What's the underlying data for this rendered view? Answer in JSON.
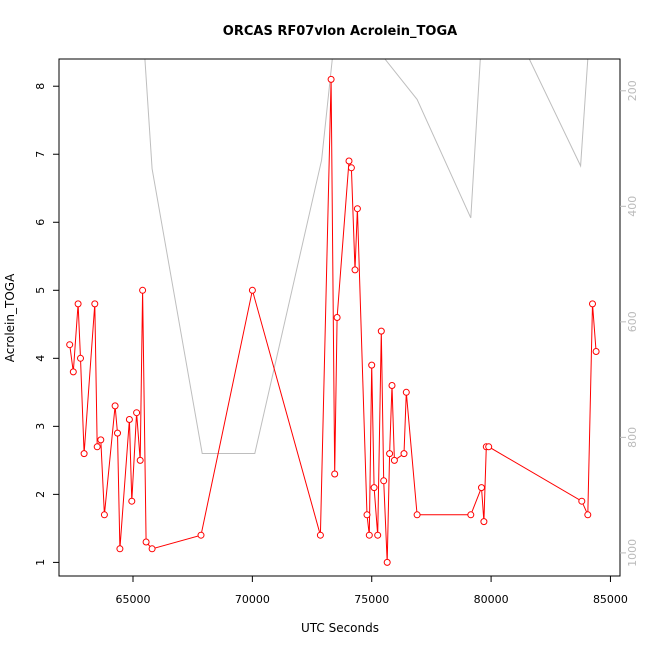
{
  "chart_data": {
    "type": "line",
    "title": "ORCAS RF07vlon Acrolein_TOGA",
    "xlabel": "UTC Seconds",
    "ylabel": "Acrolein_TOGA",
    "xlim": [
      61900,
      85400
    ],
    "ylim": [
      0.8,
      8.4
    ],
    "y2lim": [
      1040,
      145
    ],
    "x_ticks": [
      65000,
      70000,
      75000,
      80000,
      85000
    ],
    "x_tick_labels": [
      "65000",
      "70000",
      "75000",
      "80000",
      "85000"
    ],
    "y_ticks": [
      1,
      2,
      3,
      4,
      5,
      6,
      7,
      8
    ],
    "y_tick_labels": [
      "1",
      "2",
      "3",
      "4",
      "5",
      "6",
      "7",
      "8"
    ],
    "y2_ticks": [
      200,
      400,
      600,
      800,
      1000
    ],
    "y2_tick_labels": [
      "200",
      "400",
      "600",
      "800",
      "1000"
    ],
    "grid": false,
    "legend": "none",
    "colors": {
      "series": "#ff0000",
      "secondary": "#bebebe",
      "axes": "#000000",
      "right_axis": "#bbbbbb"
    },
    "series": [
      {
        "values": [
          [
            62350,
            4.2
          ],
          [
            62500,
            3.8
          ],
          [
            62700,
            4.8
          ],
          [
            62800,
            4.0
          ],
          [
            62950,
            2.6
          ],
          [
            63400,
            4.8
          ],
          [
            63500,
            2.7
          ],
          [
            63650,
            2.8
          ],
          [
            63800,
            1.7
          ],
          [
            64250,
            3.3
          ],
          [
            64350,
            2.9
          ],
          [
            64450,
            1.2
          ],
          [
            64850,
            3.1
          ],
          [
            64950,
            1.9
          ],
          [
            65150,
            3.2
          ],
          [
            65300,
            2.5
          ],
          [
            65400,
            5.0
          ],
          [
            65550,
            1.3
          ],
          [
            65800,
            1.2
          ],
          [
            67850,
            1.4
          ],
          [
            70000,
            5.0
          ],
          [
            72850,
            1.4
          ],
          [
            73300,
            8.1
          ],
          [
            73450,
            2.3
          ],
          [
            73550,
            4.6
          ],
          [
            74050,
            6.9
          ],
          [
            74150,
            6.8
          ],
          [
            74300,
            5.3
          ],
          [
            74400,
            6.2
          ],
          [
            74800,
            1.7
          ],
          [
            74900,
            1.4
          ],
          [
            75000,
            3.9
          ],
          [
            75100,
            2.1
          ],
          [
            75250,
            1.4
          ],
          [
            75400,
            4.4
          ],
          [
            75500,
            2.2
          ],
          [
            75650,
            1.0
          ],
          [
            75750,
            2.6
          ],
          [
            75850,
            3.6
          ],
          [
            75950,
            2.5
          ],
          [
            76350,
            2.6
          ],
          [
            76450,
            3.5
          ],
          [
            76900,
            1.7
          ],
          [
            79150,
            1.7
          ],
          [
            79600,
            2.1
          ],
          [
            79700,
            1.6
          ],
          [
            79800,
            2.7
          ],
          [
            79900,
            2.7
          ],
          [
            83800,
            1.9
          ],
          [
            84050,
            1.7
          ],
          [
            84250,
            4.8
          ],
          [
            84400,
            4.1
          ]
        ]
      },
      {
        "axis": "right",
        "values": [
          [
            65500,
            145
          ],
          [
            65800,
            335
          ],
          [
            67900,
            828
          ],
          [
            70100,
            828
          ],
          [
            72900,
            320
          ],
          [
            73350,
            145
          ],
          [
            75550,
            145
          ],
          [
            76900,
            215
          ],
          [
            79150,
            420
          ],
          [
            79550,
            145
          ],
          [
            81600,
            145
          ],
          [
            83750,
            330
          ],
          [
            84050,
            145
          ]
        ]
      }
    ]
  }
}
